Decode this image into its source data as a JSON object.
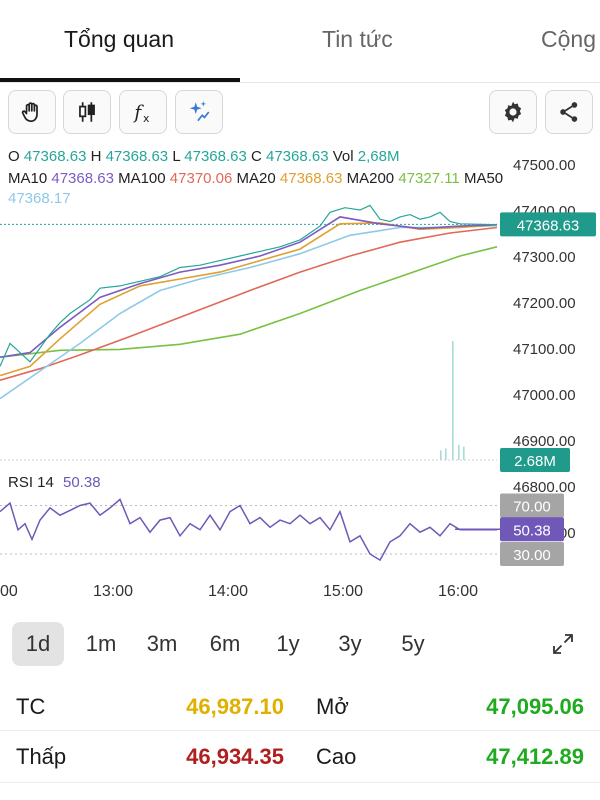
{
  "tabs": [
    {
      "label": "Tổng quan",
      "active": true
    },
    {
      "label": "Tin tức",
      "active": false
    },
    {
      "label": "Cộng",
      "active": false
    }
  ],
  "toolbar": {
    "left_icons": [
      "hand-icon",
      "candlestick-icon",
      "function-icon",
      "sparkle-icon"
    ],
    "right_icons": [
      "gear-icon",
      "share-icon"
    ]
  },
  "legend": {
    "ohlc": [
      {
        "key": "O",
        "value": "47368.63"
      },
      {
        "key": "H",
        "value": "47368.63"
      },
      {
        "key": "L",
        "value": "47368.63"
      },
      {
        "key": "C",
        "value": "47368.63"
      },
      {
        "key": "Vol",
        "value": "2,68M"
      }
    ],
    "ma": [
      {
        "key": "MA10",
        "value": "47368.63",
        "color": "#7c5cc4"
      },
      {
        "key": "MA100",
        "value": "47370.06",
        "color": "#e0695a"
      },
      {
        "key": "MA20",
        "value": "47368.63",
        "color": "#e0a030"
      },
      {
        "key": "MA200",
        "value": "47327.11",
        "color": "#7ac142"
      },
      {
        "key": "MA50",
        "value": "47368.17",
        "color": "#8ec9e8"
      }
    ],
    "ohlc_color": "#26a69a"
  },
  "chart_data": {
    "type": "line",
    "instrument_last": "47368.63",
    "x_ticks": [
      "00",
      "13:00",
      "14:00",
      "15:00",
      "16:00"
    ],
    "y_ticks": [
      "47500.00",
      "47400.00",
      "47300.00",
      "47200.00",
      "47100.00",
      "47000.00",
      "46900.00",
      "46800.00",
      "46700.00"
    ],
    "ylim": [
      46650,
      47530
    ],
    "last_price_label": "47368.63",
    "volume_label": "2.68M",
    "price_series": [
      {
        "name": "MA200",
        "color": "#7ac142",
        "points": [
          [
            0,
            47080
          ],
          [
            60,
            47095
          ],
          [
            120,
            47097
          ],
          [
            180,
            47108
          ],
          [
            240,
            47130
          ],
          [
            300,
            47175
          ],
          [
            360,
            47225
          ],
          [
            420,
            47270
          ],
          [
            460,
            47300
          ],
          [
            497,
            47320
          ]
        ]
      },
      {
        "name": "MA100",
        "color": "#e0695a",
        "points": [
          [
            0,
            47030
          ],
          [
            40,
            47055
          ],
          [
            80,
            47085
          ],
          [
            130,
            47125
          ],
          [
            190,
            47175
          ],
          [
            250,
            47225
          ],
          [
            300,
            47265
          ],
          [
            350,
            47300
          ],
          [
            400,
            47330
          ],
          [
            450,
            47350
          ],
          [
            497,
            47362
          ]
        ]
      },
      {
        "name": "MA50",
        "color": "#8ec9e8",
        "points": [
          [
            0,
            46990
          ],
          [
            40,
            47050
          ],
          [
            80,
            47110
          ],
          [
            120,
            47175
          ],
          [
            160,
            47225
          ],
          [
            200,
            47250
          ],
          [
            250,
            47275
          ],
          [
            300,
            47305
          ],
          [
            350,
            47345
          ],
          [
            400,
            47362
          ],
          [
            450,
            47362
          ],
          [
            497,
            47366
          ]
        ]
      },
      {
        "name": "MA20",
        "color": "#e0a030",
        "points": [
          [
            0,
            47040
          ],
          [
            30,
            47060
          ],
          [
            60,
            47120
          ],
          [
            100,
            47195
          ],
          [
            140,
            47235
          ],
          [
            180,
            47250
          ],
          [
            220,
            47265
          ],
          [
            260,
            47290
          ],
          [
            300,
            47315
          ],
          [
            340,
            47370
          ],
          [
            380,
            47372
          ],
          [
            420,
            47358
          ],
          [
            460,
            47362
          ],
          [
            497,
            47368
          ]
        ]
      },
      {
        "name": "MA10",
        "color": "#7c5cc4",
        "points": [
          [
            0,
            47080
          ],
          [
            30,
            47090
          ],
          [
            60,
            47145
          ],
          [
            100,
            47210
          ],
          [
            140,
            47240
          ],
          [
            180,
            47265
          ],
          [
            220,
            47280
          ],
          [
            260,
            47300
          ],
          [
            300,
            47330
          ],
          [
            340,
            47385
          ],
          [
            380,
            47370
          ],
          [
            420,
            47360
          ],
          [
            460,
            47365
          ],
          [
            497,
            47368
          ]
        ]
      },
      {
        "name": "Price",
        "color": "#26a69a",
        "points": [
          [
            0,
            47060
          ],
          [
            10,
            47110
          ],
          [
            20,
            47090
          ],
          [
            30,
            47070
          ],
          [
            40,
            47100
          ],
          [
            50,
            47130
          ],
          [
            60,
            47155
          ],
          [
            70,
            47175
          ],
          [
            80,
            47190
          ],
          [
            90,
            47205
          ],
          [
            100,
            47230
          ],
          [
            120,
            47235
          ],
          [
            140,
            47245
          ],
          [
            160,
            47255
          ],
          [
            180,
            47275
          ],
          [
            200,
            47280
          ],
          [
            220,
            47290
          ],
          [
            240,
            47300
          ],
          [
            260,
            47310
          ],
          [
            280,
            47320
          ],
          [
            300,
            47335
          ],
          [
            320,
            47365
          ],
          [
            330,
            47395
          ],
          [
            345,
            47405
          ],
          [
            360,
            47400
          ],
          [
            370,
            47410
          ],
          [
            380,
            47380
          ],
          [
            390,
            47375
          ],
          [
            400,
            47385
          ],
          [
            410,
            47390
          ],
          [
            420,
            47380
          ],
          [
            430,
            47385
          ],
          [
            440,
            47395
          ],
          [
            450,
            47375
          ],
          [
            460,
            47370
          ],
          [
            497,
            47368
          ]
        ]
      }
    ],
    "volume_bars": [
      [
        440,
        0.05
      ],
      [
        445,
        0.06
      ],
      [
        452,
        0.62
      ],
      [
        458,
        0.08
      ],
      [
        463,
        0.07
      ]
    ],
    "rsi": {
      "label": "RSI 14",
      "value": "50.38",
      "color": "#6f58b8",
      "levels": [
        "70.00",
        "30.00"
      ],
      "ylim": [
        0,
        100
      ],
      "points": [
        [
          0,
          65
        ],
        [
          10,
          72
        ],
        [
          18,
          50
        ],
        [
          25,
          55
        ],
        [
          32,
          42
        ],
        [
          40,
          58
        ],
        [
          50,
          68
        ],
        [
          60,
          62
        ],
        [
          70,
          66
        ],
        [
          80,
          70
        ],
        [
          90,
          72
        ],
        [
          100,
          62
        ],
        [
          110,
          68
        ],
        [
          120,
          75
        ],
        [
          130,
          55
        ],
        [
          140,
          60
        ],
        [
          150,
          48
        ],
        [
          160,
          58
        ],
        [
          170,
          60
        ],
        [
          180,
          45
        ],
        [
          190,
          55
        ],
        [
          200,
          50
        ],
        [
          210,
          62
        ],
        [
          220,
          50
        ],
        [
          230,
          65
        ],
        [
          240,
          70
        ],
        [
          250,
          55
        ],
        [
          260,
          60
        ],
        [
          270,
          52
        ],
        [
          280,
          58
        ],
        [
          290,
          55
        ],
        [
          300,
          62
        ],
        [
          310,
          55
        ],
        [
          320,
          60
        ],
        [
          330,
          50
        ],
        [
          340,
          65
        ],
        [
          350,
          40
        ],
        [
          360,
          45
        ],
        [
          370,
          30
        ],
        [
          380,
          25
        ],
        [
          390,
          40
        ],
        [
          400,
          45
        ],
        [
          410,
          55
        ],
        [
          420,
          48
        ],
        [
          430,
          52
        ],
        [
          440,
          45
        ],
        [
          450,
          55
        ],
        [
          460,
          50
        ],
        [
          497,
          50
        ]
      ]
    }
  },
  "ranges": [
    {
      "label": "1d",
      "active": true
    },
    {
      "label": "1m",
      "active": false
    },
    {
      "label": "3m",
      "active": false
    },
    {
      "label": "6m",
      "active": false
    },
    {
      "label": "1y",
      "active": false
    },
    {
      "label": "3y",
      "active": false
    },
    {
      "label": "5y",
      "active": false
    }
  ],
  "expand_icon": "expand-icon",
  "stats": [
    {
      "label": "TC",
      "value": "46,987.10",
      "color": "#e0b000"
    },
    {
      "label": "Mở",
      "value": "47,095.06",
      "color": "#1faa1f"
    },
    {
      "label": "Thấp",
      "value": "46,934.35",
      "color": "#b01e1e"
    },
    {
      "label": "Cao",
      "value": "47,412.89",
      "color": "#1faa1f"
    }
  ]
}
